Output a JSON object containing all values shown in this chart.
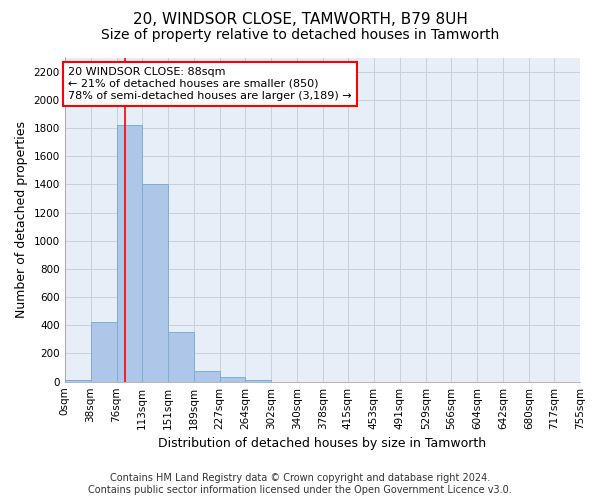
{
  "title": "20, WINDSOR CLOSE, TAMWORTH, B79 8UH",
  "subtitle": "Size of property relative to detached houses in Tamworth",
  "xlabel": "Distribution of detached houses by size in Tamworth",
  "ylabel": "Number of detached properties",
  "bar_color": "#aec6e8",
  "bar_edge_color": "#7aafd4",
  "background_color": "#e8eef8",
  "bin_edges": [
    0,
    38,
    76,
    113,
    151,
    189,
    227,
    264,
    302,
    340,
    378,
    415,
    453,
    491,
    529,
    566,
    604,
    642,
    680,
    717,
    755
  ],
  "bar_heights": [
    15,
    420,
    1820,
    1400,
    350,
    75,
    30,
    15,
    0,
    0,
    0,
    0,
    0,
    0,
    0,
    0,
    0,
    0,
    0,
    0
  ],
  "tick_labels": [
    "0sqm",
    "38sqm",
    "76sqm",
    "113sqm",
    "151sqm",
    "189sqm",
    "227sqm",
    "264sqm",
    "302sqm",
    "340sqm",
    "378sqm",
    "415sqm",
    "453sqm",
    "491sqm",
    "529sqm",
    "566sqm",
    "604sqm",
    "642sqm",
    "680sqm",
    "717sqm",
    "755sqm"
  ],
  "ylim": [
    0,
    2300
  ],
  "yticks": [
    0,
    200,
    400,
    600,
    800,
    1000,
    1200,
    1400,
    1600,
    1800,
    2000,
    2200
  ],
  "red_line_x": 88,
  "annotation_line1": "20 WINDSOR CLOSE: 88sqm",
  "annotation_line2": "← 21% of detached houses are smaller (850)",
  "annotation_line3": "78% of semi-detached houses are larger (3,189) →",
  "annotation_box_color": "white",
  "annotation_box_edge": "red",
  "footer_line1": "Contains HM Land Registry data © Crown copyright and database right 2024.",
  "footer_line2": "Contains public sector information licensed under the Open Government Licence v3.0.",
  "grid_color": "#c8d0dc",
  "title_fontsize": 11,
  "subtitle_fontsize": 10,
  "axis_label_fontsize": 9,
  "tick_fontsize": 7.5,
  "annotation_fontsize": 8,
  "footer_fontsize": 7
}
